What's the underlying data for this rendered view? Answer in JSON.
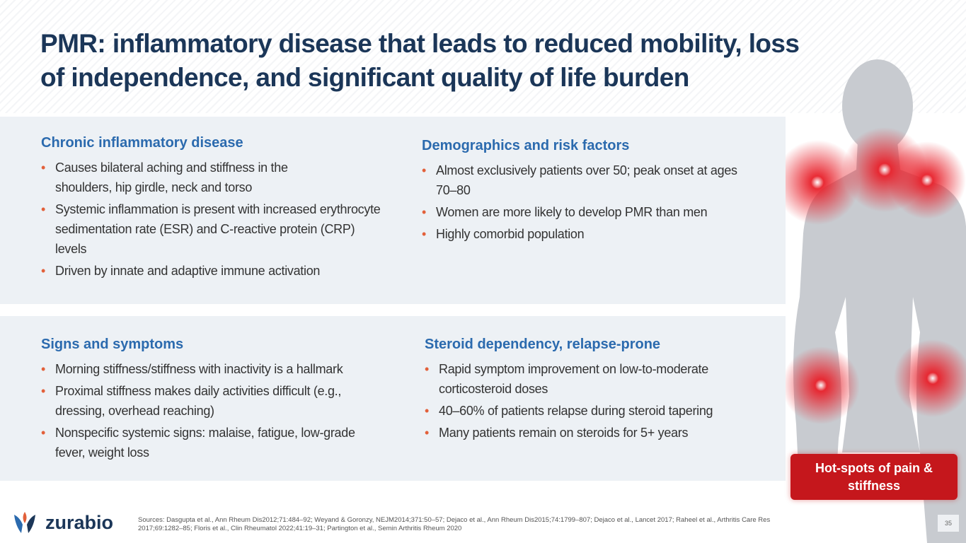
{
  "header": {
    "title": "PMR: inflammatory disease that leads to reduced mobility, loss of independence, and significant quality of life burden"
  },
  "sections": [
    {
      "heading": "Chronic inflammatory disease",
      "bullets": [
        "Causes bilateral aching and stiffness in the shoulders, hip girdle, neck and torso",
        "Systemic inflammation is present with increased erythrocyte sedimentation rate (ESR) and C-reactive protein (CRP) levels",
        "Driven by innate and adaptive immune activation"
      ]
    },
    {
      "heading": "Demographics and risk factors",
      "bullets": [
        "Almost exclusively patients over 50; peak onset at ages 70–80",
        "Women are more likely to develop PMR than men",
        "Highly comorbid population"
      ]
    },
    {
      "heading": "Signs and symptoms",
      "bullets": [
        "Morning stiffness/stiffness with inactivity is a hallmark",
        "Proximal stiffness makes daily activities difficult (e.g., dressing, overhead reaching)",
        "Nonspecific systemic signs: malaise, fatigue, low-grade fever, weight loss"
      ]
    },
    {
      "heading": "Steroid dependency, relapse-prone",
      "bullets": [
        "Rapid symptom improvement on low-to-moderate corticosteroid doses",
        "40–60% of patients relapse during steroid tapering",
        "Many patients remain on steroids for 5+ years"
      ]
    }
  ],
  "callout": "Hot-spots of pain & stiffness",
  "footer": {
    "logo": "zurabio",
    "sources": "Sources: Dasgupta et al., Ann Rheum Dis2012;71:484–92; Weyand & Goronzy, NEJM2014;371:50–57; Dejaco et al., Ann Rheum Dis2015;74:1799–807; Dejaco et al., Lancet 2017; Raheel et al., Arthritis Care Res 2017;69:1282–85; Floris et al., Clin Rheumatol 2022;41:19–31; Partington et al., Semin Arthritis Rheum 2020",
    "page_number": "35"
  }
}
